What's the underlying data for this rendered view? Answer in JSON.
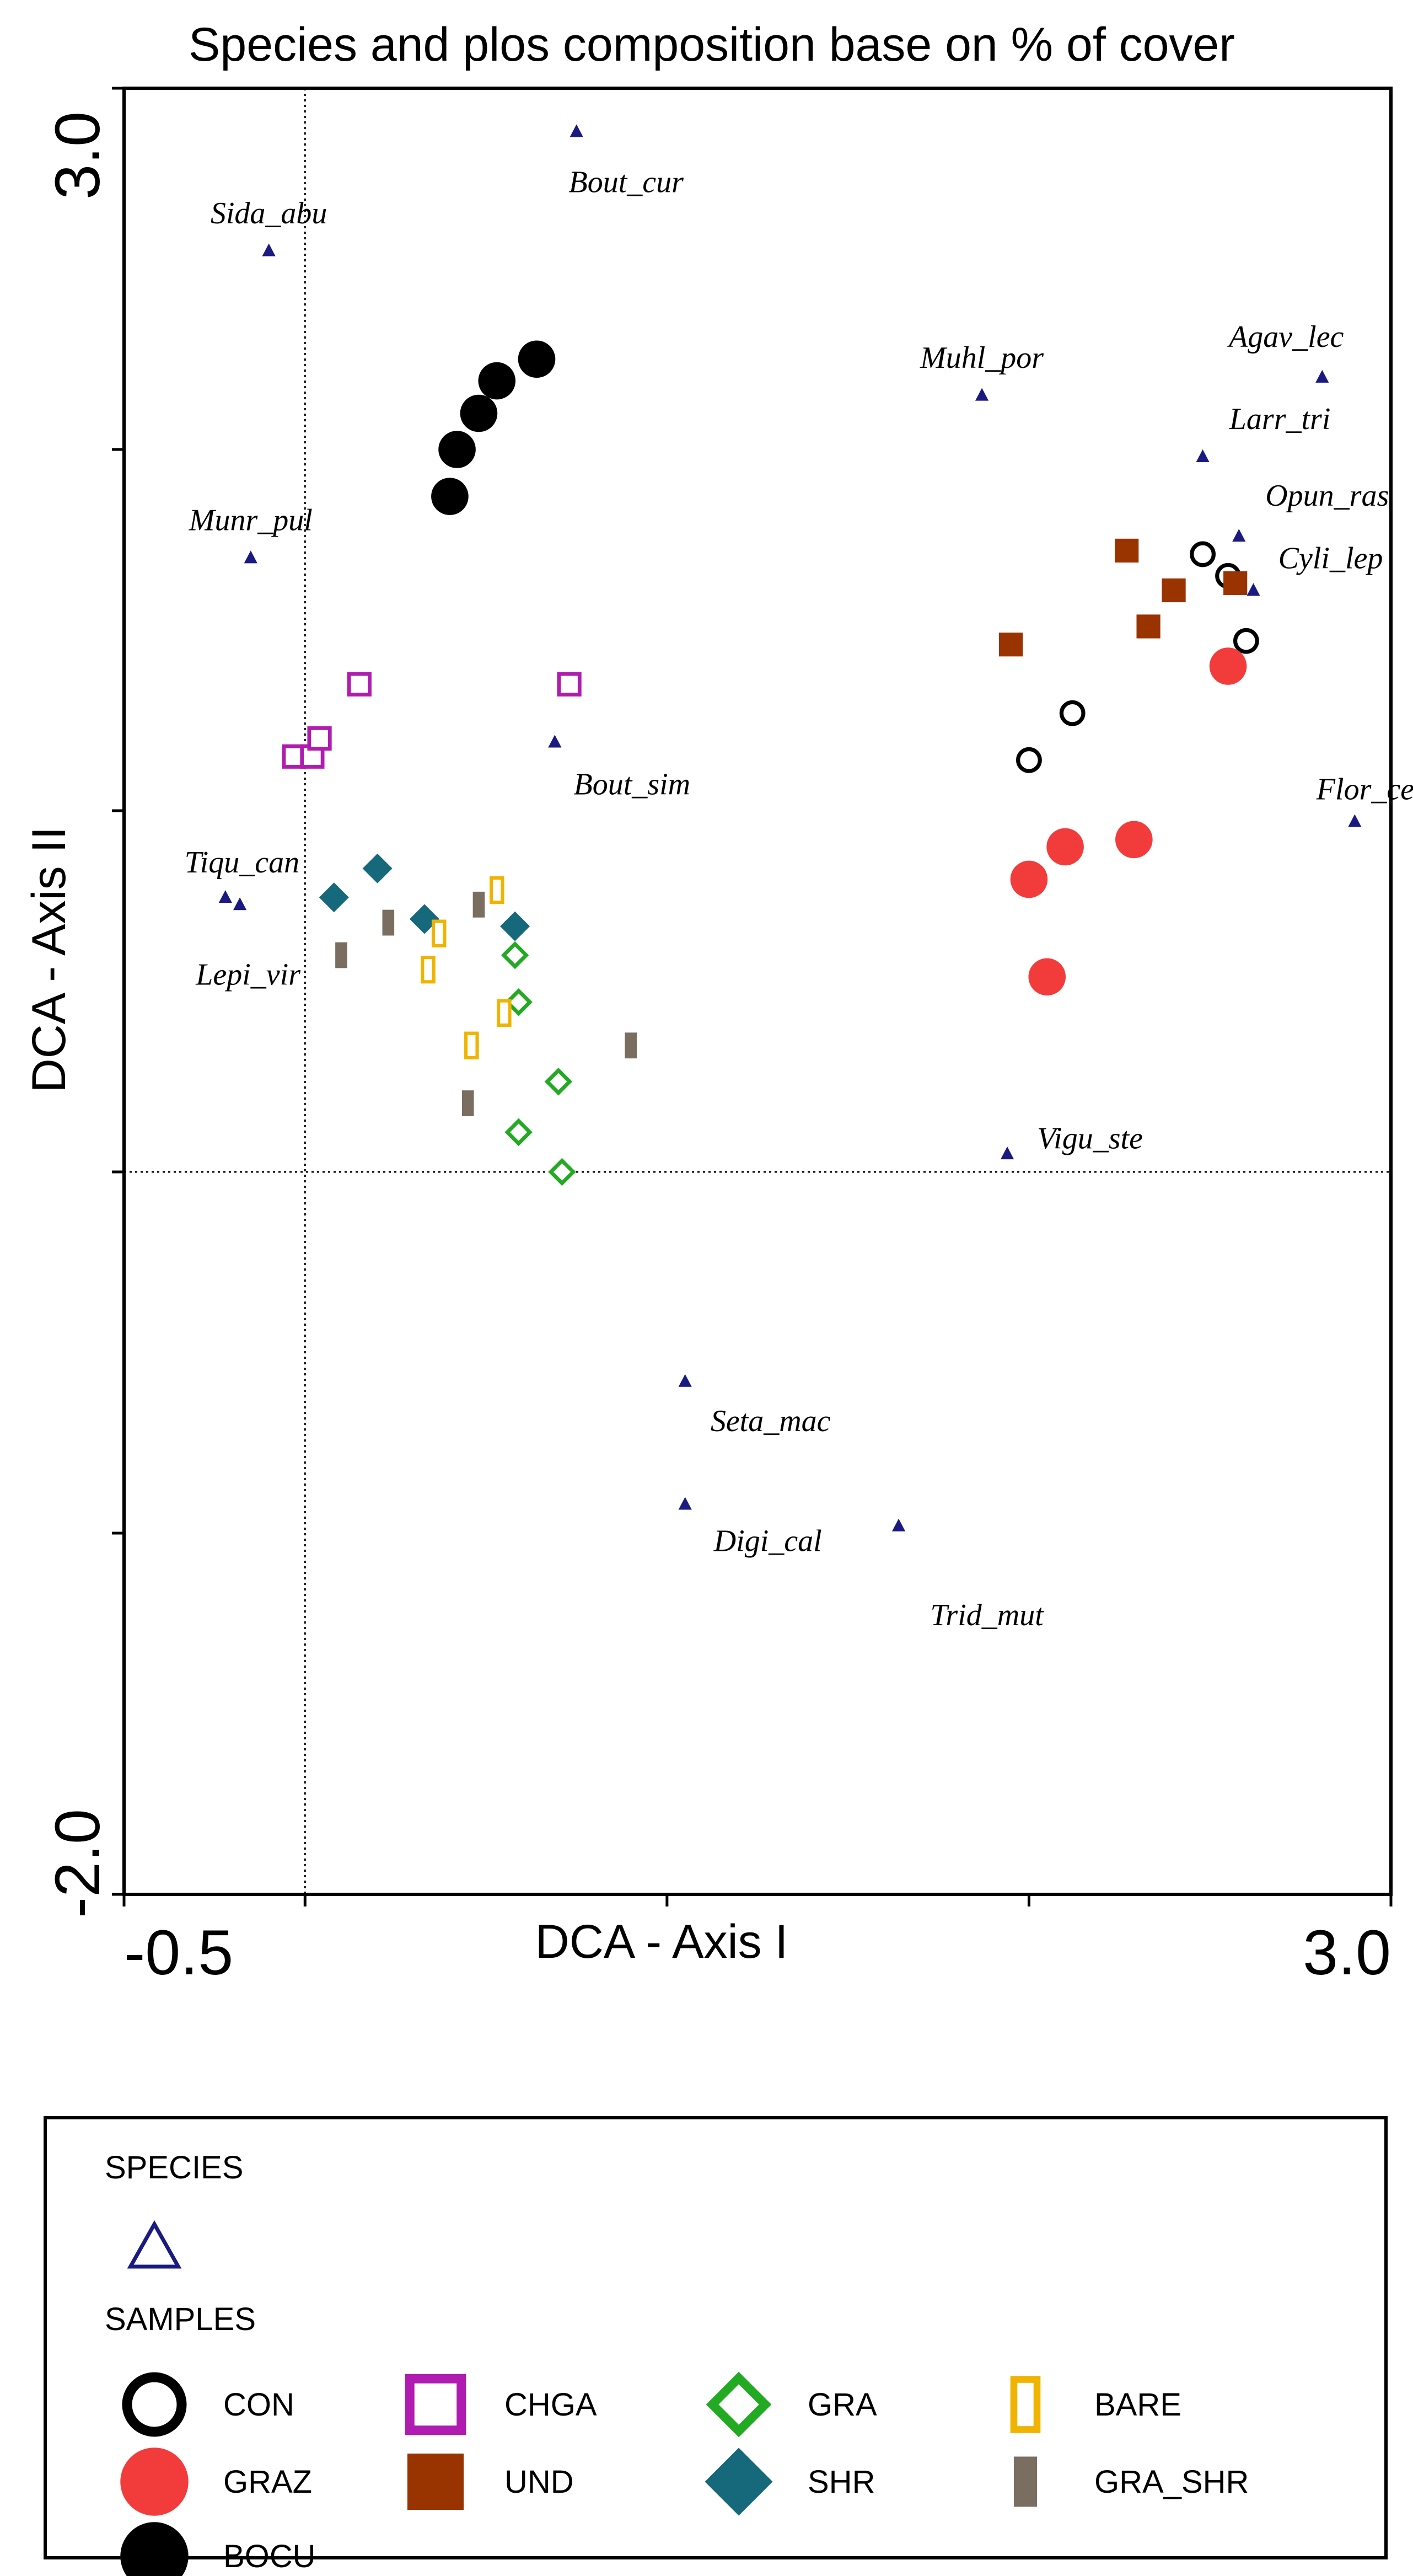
{
  "chart_data": {
    "type": "scatter",
    "title": "Species and plos composition base on % of cover",
    "xlabel": "DCA - Axis I",
    "ylabel": "DCA - Axis II",
    "xlim": [
      -0.5,
      3.0
    ],
    "ylim": [
      -2.0,
      3.0
    ],
    "x_tick_labels": [
      "-0.5",
      "3.0"
    ],
    "y_tick_labels": [
      "3.0",
      "-2.0"
    ],
    "reference_lines": {
      "x": 0,
      "y": 0,
      "style": "dotted"
    },
    "grid": false,
    "species": {
      "name": "SPECIES",
      "color": "#1a1a80",
      "points": [
        {
          "label": "Bout_cur",
          "x": 0.75,
          "y": 2.88
        },
        {
          "label": "Sida_abu",
          "x": -0.1,
          "y": 2.55
        },
        {
          "label": "Muhl_por",
          "x": 1.87,
          "y": 2.15
        },
        {
          "label": "Agav_lec",
          "x": 2.81,
          "y": 2.2
        },
        {
          "label": "Larr_tri",
          "x": 2.48,
          "y": 1.98
        },
        {
          "label": "Opun_ras",
          "x": 2.58,
          "y": 1.76
        },
        {
          "label": "Cyli_lep",
          "x": 2.62,
          "y": 1.61
        },
        {
          "label": "Munr_pul",
          "x": -0.15,
          "y": 1.7
        },
        {
          "label": "Bout_sim",
          "x": 0.69,
          "y": 1.19
        },
        {
          "label": "Flor_cer",
          "x": 2.9,
          "y": 0.97
        },
        {
          "label": "Tiqu_can",
          "x": -0.22,
          "y": 0.76
        },
        {
          "label": "Lepi_vir",
          "x": -0.18,
          "y": 0.74
        },
        {
          "label": "Vigu_ste",
          "x": 1.94,
          "y": 0.05
        },
        {
          "label": "Seta_mac",
          "x": 1.05,
          "y": -0.58
        },
        {
          "label": "Digi_cal",
          "x": 1.05,
          "y": -0.92
        },
        {
          "label": "Trid_mut",
          "x": 1.64,
          "y": -0.98
        }
      ]
    },
    "samples_heading": "SAMPLES",
    "series": [
      {
        "name": "CON",
        "marker": "circle-open",
        "color": "#000000",
        "x": [
          2.0,
          2.12,
          2.48,
          2.55,
          2.6
        ],
        "y": [
          1.14,
          1.27,
          1.71,
          1.65,
          1.47
        ]
      },
      {
        "name": "GRAZ",
        "marker": "circle-filled",
        "color": "#f23c3c",
        "x": [
          2.0,
          2.05,
          2.1,
          2.29,
          2.55
        ],
        "y": [
          0.81,
          0.54,
          0.9,
          0.92,
          1.4
        ]
      },
      {
        "name": "BOCU",
        "marker": "circle-filled",
        "color": "#000000",
        "x": [
          0.4,
          0.42,
          0.48,
          0.53,
          0.64
        ],
        "y": [
          1.87,
          2.0,
          2.1,
          2.19,
          2.25
        ]
      },
      {
        "name": "CHGA",
        "marker": "square-open",
        "color": "#b01cb0",
        "x": [
          -0.03,
          0.02,
          0.04,
          0.15,
          0.73
        ],
        "y": [
          1.15,
          1.15,
          1.2,
          1.35,
          1.35
        ]
      },
      {
        "name": "UND",
        "marker": "square-filled",
        "color": "#993300",
        "x": [
          1.95,
          2.27,
          2.33,
          2.4,
          2.57
        ],
        "y": [
          1.46,
          1.72,
          1.51,
          1.61,
          1.63
        ]
      },
      {
        "name": "GRA",
        "marker": "diamond-open",
        "color": "#22aa22",
        "x": [
          0.58,
          0.59,
          0.59,
          0.7,
          0.71
        ],
        "y": [
          0.6,
          0.47,
          0.11,
          0.25,
          0.0
        ]
      },
      {
        "name": "SHR",
        "marker": "diamond-filled",
        "color": "#16697a",
        "x": [
          0.08,
          0.2,
          0.33,
          0.58
        ],
        "y": [
          0.76,
          0.84,
          0.7,
          0.68
        ]
      },
      {
        "name": "BARE",
        "marker": "bar-open",
        "color": "#f0b400",
        "x": [
          0.34,
          0.37,
          0.46,
          0.53,
          0.55
        ],
        "y": [
          0.56,
          0.66,
          0.35,
          0.78,
          0.44
        ]
      },
      {
        "name": "GRA_SHR",
        "marker": "bar-filled",
        "color": "#7a6e60",
        "x": [
          0.1,
          0.23,
          0.45,
          0.48,
          0.9
        ],
        "y": [
          0.6,
          0.69,
          0.19,
          0.74,
          0.35
        ]
      }
    ],
    "legend_placement": "below"
  }
}
